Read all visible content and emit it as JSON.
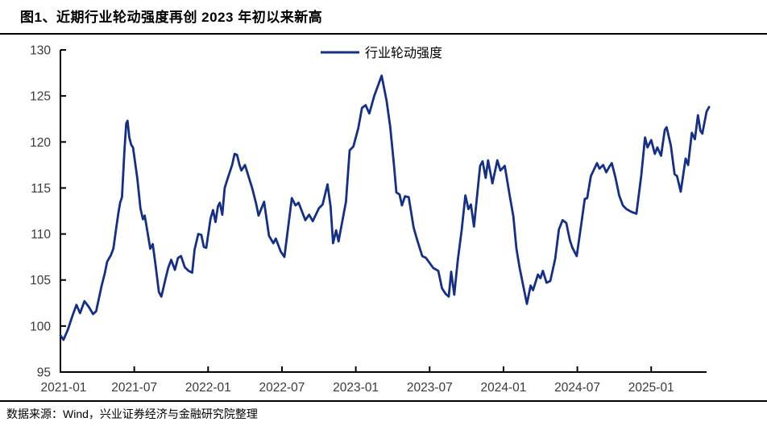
{
  "title": "图1、近期行业轮动强度再创 2023 年初以来新高",
  "source": "数据来源：Wind，兴业证券经济与金融研究院整理",
  "legend": {
    "label": "行业轮动强度"
  },
  "colors": {
    "line": "#142F85",
    "axis": "#000000",
    "tick_label": "#3a3a3a",
    "title": "#000000"
  },
  "chart_data": {
    "type": "line",
    "title": "图1、近期行业轮动强度再创 2023 年初以来新高",
    "xlabel": "",
    "ylabel": "",
    "grid": false,
    "legend_position": "top-center",
    "ylim": [
      95,
      130
    ],
    "y_ticks": [
      95,
      100,
      105,
      110,
      115,
      120,
      125,
      130
    ],
    "x_tick_labels": [
      "2021-01",
      "2021-07",
      "2022-01",
      "2022-07",
      "2023-01",
      "2023-07",
      "2024-01",
      "2024-07",
      "2025-01"
    ],
    "x_tick_months": [
      0,
      6,
      12,
      18,
      24,
      30,
      36,
      42,
      48
    ],
    "xlim_months": [
      0,
      52.5
    ],
    "series": [
      {
        "name": "行业轮动强度",
        "x_unit": "months_since_2021_01",
        "points": [
          [
            0,
            99.0
          ],
          [
            0.25,
            98.5
          ],
          [
            0.6,
            99.6
          ],
          [
            1,
            101.2
          ],
          [
            1.3,
            102.3
          ],
          [
            1.6,
            101.4
          ],
          [
            1.95,
            102.7
          ],
          [
            2.3,
            102.1
          ],
          [
            2.65,
            101.3
          ],
          [
            2.9,
            101.6
          ],
          [
            3.35,
            104.4
          ],
          [
            3.6,
            105.7
          ],
          [
            3.8,
            107
          ],
          [
            4.1,
            107.7
          ],
          [
            4.3,
            108.4
          ],
          [
            4.55,
            110.8
          ],
          [
            4.7,
            112.2
          ],
          [
            4.85,
            113.4
          ],
          [
            5,
            114
          ],
          [
            5.2,
            119
          ],
          [
            5.35,
            122
          ],
          [
            5.45,
            122.3
          ],
          [
            5.6,
            120.5
          ],
          [
            5.75,
            119.7
          ],
          [
            5.9,
            119.4
          ],
          [
            6.25,
            116
          ],
          [
            6.5,
            112.8
          ],
          [
            6.7,
            111.6
          ],
          [
            6.85,
            112
          ],
          [
            7.1,
            110
          ],
          [
            7.3,
            108.4
          ],
          [
            7.5,
            108.9
          ],
          [
            7.75,
            106.4
          ],
          [
            8,
            103.7
          ],
          [
            8.2,
            103.2
          ],
          [
            8.5,
            104.9
          ],
          [
            8.75,
            106.3
          ],
          [
            9,
            107.2
          ],
          [
            9.3,
            106.1
          ],
          [
            9.55,
            107.4
          ],
          [
            9.8,
            107.6
          ],
          [
            10.1,
            106.4
          ],
          [
            10.4,
            106
          ],
          [
            10.7,
            105.8
          ],
          [
            10.9,
            108.3
          ],
          [
            11.2,
            110
          ],
          [
            11.45,
            109.9
          ],
          [
            11.65,
            108.6
          ],
          [
            11.85,
            108.5
          ],
          [
            12.2,
            111.7
          ],
          [
            12.4,
            112.6
          ],
          [
            12.6,
            111.3
          ],
          [
            12.8,
            113
          ],
          [
            12.95,
            113.4
          ],
          [
            13.15,
            112.1
          ],
          [
            13.35,
            115
          ],
          [
            13.6,
            116.1
          ],
          [
            13.95,
            117.5
          ],
          [
            14.15,
            118.7
          ],
          [
            14.35,
            118.6
          ],
          [
            14.55,
            117.5
          ],
          [
            14.7,
            116.9
          ],
          [
            15,
            117.5
          ],
          [
            15.6,
            114.9
          ],
          [
            15.9,
            113.3
          ],
          [
            16.1,
            112
          ],
          [
            16.55,
            113.5
          ],
          [
            16.95,
            109.8
          ],
          [
            17.3,
            109
          ],
          [
            17.5,
            109.5
          ],
          [
            17.9,
            108.1
          ],
          [
            18.2,
            107.5
          ],
          [
            18.8,
            113.9
          ],
          [
            19.1,
            113.1
          ],
          [
            19.35,
            113.4
          ],
          [
            19.9,
            111.5
          ],
          [
            20.2,
            112.1
          ],
          [
            20.5,
            111.4
          ],
          [
            21,
            112.8
          ],
          [
            21.3,
            113.2
          ],
          [
            21.7,
            115.4
          ],
          [
            21.95,
            113
          ],
          [
            22.15,
            109
          ],
          [
            22.4,
            110.4
          ],
          [
            22.6,
            109.2
          ],
          [
            23.2,
            113.5
          ],
          [
            23.5,
            119.1
          ],
          [
            23.8,
            119.5
          ],
          [
            24.2,
            121.5
          ],
          [
            24.5,
            123.7
          ],
          [
            24.8,
            124
          ],
          [
            25.1,
            123.1
          ],
          [
            25.5,
            125
          ],
          [
            26.1,
            127.2
          ],
          [
            26.5,
            124.5
          ],
          [
            26.8,
            121.6
          ],
          [
            27.1,
            117.5
          ],
          [
            27.3,
            114.5
          ],
          [
            27.55,
            114.3
          ],
          [
            27.75,
            113.1
          ],
          [
            28,
            114.1
          ],
          [
            28.3,
            114
          ],
          [
            28.7,
            110.7
          ],
          [
            29,
            109.3
          ],
          [
            29.4,
            107.6
          ],
          [
            29.7,
            107.4
          ],
          [
            30.3,
            106.3
          ],
          [
            30.7,
            106
          ],
          [
            31,
            104.1
          ],
          [
            31.3,
            103.5
          ],
          [
            31.55,
            103.2
          ],
          [
            31.75,
            105.9
          ],
          [
            32,
            103.4
          ],
          [
            32.3,
            107.3
          ],
          [
            32.6,
            110.4
          ],
          [
            32.9,
            114.2
          ],
          [
            33.15,
            112.7
          ],
          [
            33.35,
            113.2
          ],
          [
            33.6,
            110.8
          ],
          [
            34.1,
            117.4
          ],
          [
            34.3,
            117.9
          ],
          [
            34.55,
            116.1
          ],
          [
            34.75,
            118
          ],
          [
            35.1,
            115.5
          ],
          [
            35.5,
            118
          ],
          [
            35.75,
            116.9
          ],
          [
            36.1,
            117.4
          ],
          [
            36.5,
            114.2
          ],
          [
            36.8,
            111.9
          ],
          [
            37.05,
            108.4
          ],
          [
            37.3,
            106.4
          ],
          [
            37.6,
            104.4
          ],
          [
            37.9,
            102.4
          ],
          [
            38.2,
            104.4
          ],
          [
            38.4,
            103.9
          ],
          [
            38.8,
            105.6
          ],
          [
            39,
            105.2
          ],
          [
            39.2,
            106
          ],
          [
            39.5,
            104.7
          ],
          [
            39.8,
            104.9
          ],
          [
            40.2,
            107.3
          ],
          [
            40.5,
            110.5
          ],
          [
            40.8,
            111.5
          ],
          [
            41.1,
            111.2
          ],
          [
            41.4,
            109.3
          ],
          [
            41.6,
            108.5
          ],
          [
            41.95,
            107.6
          ],
          [
            42.3,
            110.9
          ],
          [
            42.6,
            113.8
          ],
          [
            42.8,
            113.9
          ],
          [
            43.1,
            116.3
          ],
          [
            43.6,
            117.7
          ],
          [
            43.8,
            117.1
          ],
          [
            44.1,
            117.5
          ],
          [
            44.35,
            116.7
          ],
          [
            44.6,
            117.3
          ],
          [
            44.8,
            117.7
          ],
          [
            45.1,
            116.1
          ],
          [
            45.4,
            114.2
          ],
          [
            45.7,
            113.1
          ],
          [
            46,
            112.7
          ],
          [
            46.4,
            112.4
          ],
          [
            46.8,
            112.2
          ],
          [
            47.2,
            116.4
          ],
          [
            47.5,
            120.5
          ],
          [
            47.7,
            119.4
          ],
          [
            48,
            120.2
          ],
          [
            48.3,
            118.7
          ],
          [
            48.5,
            119.4
          ],
          [
            48.8,
            118.5
          ],
          [
            49.1,
            121.3
          ],
          [
            49.25,
            121.6
          ],
          [
            49.6,
            119.6
          ],
          [
            49.9,
            116.5
          ],
          [
            50.1,
            116.3
          ],
          [
            50.4,
            114.6
          ],
          [
            50.8,
            118.2
          ],
          [
            51,
            117.5
          ],
          [
            51.3,
            121
          ],
          [
            51.55,
            120.3
          ],
          [
            51.8,
            122.9
          ],
          [
            52,
            121.2
          ],
          [
            52.15,
            120.9
          ],
          [
            52.5,
            123.3
          ],
          [
            52.7,
            123.8
          ]
        ]
      }
    ]
  }
}
